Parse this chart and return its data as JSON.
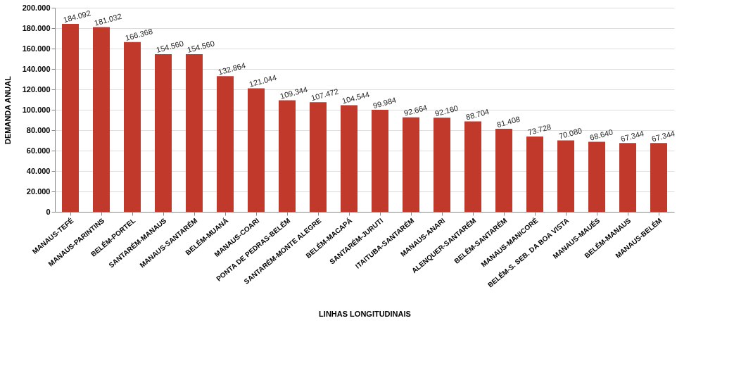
{
  "chart_data": {
    "type": "bar",
    "xlabel": "LINHAS LONGITUDINAIS",
    "ylabel": "DEMANDA ANUAL",
    "categories": [
      "MANAUS-TEFÉ",
      "MANAUS-PARINTINS",
      "BELÉM-PORTEL",
      "SANTARÉM-MANAUS",
      "MANAUS-SANTARÉM",
      "BELÉM-MUANÁ",
      "MANAUS-COARI",
      "PONTA DE PEDRAS-BELÉM",
      "SANTARÉM-MONTE ALEGRE",
      "BELÉM-MACAPÁ",
      "SANTARÉM-JURUTI",
      "ITAITUBA-SANTARÉM",
      "MANAUS-ANARI",
      "ALENQUER-SANTARÉM",
      "BELÉM-SANTARÉM",
      "MANAUS-MANICORÉ",
      "BELÉM-S. SEB. DA BOA VISTA",
      "MANAUS-MAUÉS",
      "BELÉM-MANAUS",
      "MANAUS-BELÉM"
    ],
    "values": [
      184092,
      181032,
      166368,
      154560,
      154560,
      132864,
      121044,
      109344,
      107472,
      104544,
      99984,
      92664,
      92160,
      88704,
      81408,
      73728,
      70080,
      68640,
      67344,
      67344
    ],
    "value_labels": [
      "184.092",
      "181.032",
      "166.368",
      "154.560",
      "154.560",
      "132.864",
      "121.044",
      "109.344",
      "107.472",
      "104.544",
      "99.984",
      "92.664",
      "92.160",
      "88.704",
      "81.408",
      "73.728",
      "70.080",
      "68.640",
      "67.344",
      "67.344"
    ],
    "color": "#c0392b",
    "ylim": [
      0,
      200000
    ],
    "yticks": [
      0,
      {
        "value": 20000,
        "label": "20.000"
      },
      {
        "value": 40000,
        "label": "40.000"
      },
      {
        "value": 60000,
        "label": "60.000"
      },
      {
        "value": 80000,
        "label": "80.000"
      },
      {
        "value": 100000,
        "label": "100.000"
      },
      {
        "value": 120000,
        "label": "120.000"
      },
      {
        "value": 140000,
        "label": "140.000"
      },
      {
        "value": 160000,
        "label": "160.000"
      },
      {
        "value": 180000,
        "label": "180.000"
      },
      {
        "value": 200000,
        "label": "200.000"
      }
    ],
    "grid": "y"
  }
}
